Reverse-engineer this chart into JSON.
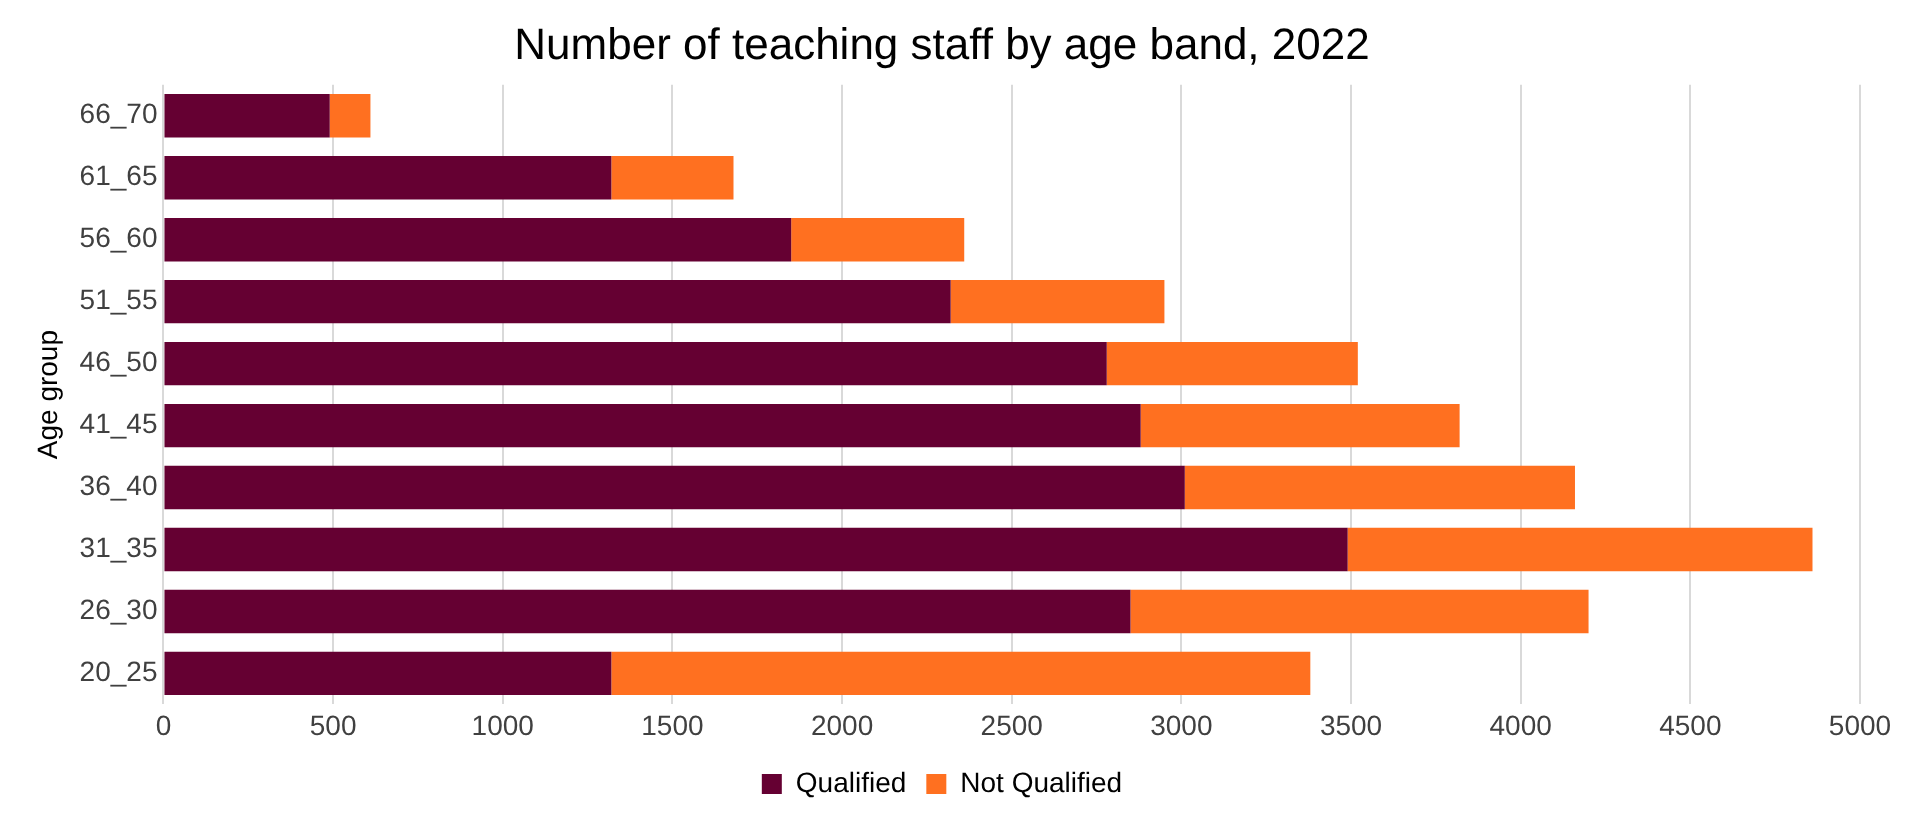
{
  "chart_data": {
    "type": "bar",
    "orientation": "horizontal",
    "stacked": true,
    "title": "Number of teaching staff by age band, 2022",
    "ylabel": "Age group",
    "categories": [
      "66_70",
      "61_65",
      "56_60",
      "51_55",
      "46_50",
      "41_45",
      "36_40",
      "31_35",
      "26_30",
      "20_25"
    ],
    "series": [
      {
        "name": "Qualified",
        "color": "#650032",
        "values": [
          490,
          1320,
          1850,
          2320,
          2780,
          2880,
          3010,
          3490,
          2850,
          1320
        ]
      },
      {
        "name": "Not Qualified",
        "color": "#ff7020",
        "values": [
          120,
          360,
          510,
          630,
          740,
          940,
          1150,
          1370,
          1350,
          2060
        ]
      }
    ],
    "xlim": [
      0,
      5000
    ],
    "xticks": [
      0,
      500,
      1000,
      1500,
      2000,
      2500,
      3000,
      3500,
      4000,
      4500,
      5000
    ],
    "grid": "x",
    "legend": "bottom"
  }
}
